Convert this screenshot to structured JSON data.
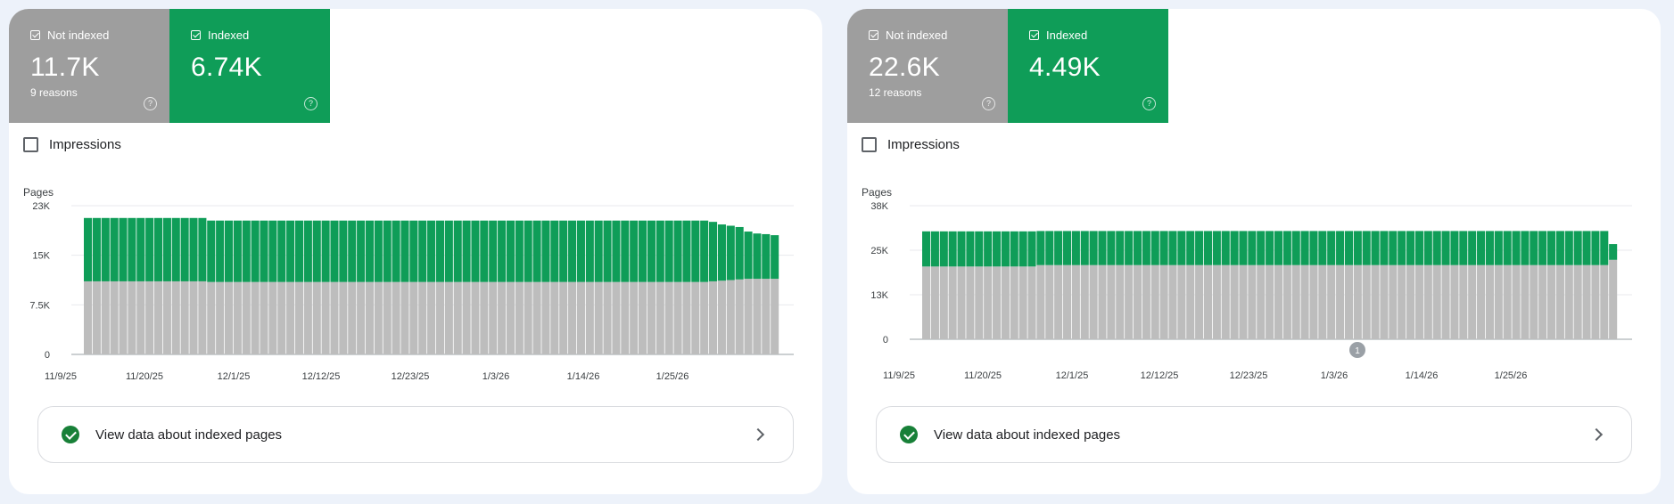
{
  "colors": {
    "not_indexed": "#bdbdbd",
    "indexed": "#0f9d58",
    "tile_not_indexed": "#9e9e9e",
    "tile_indexed": "#0f9d58",
    "check": "#188038"
  },
  "cards": [
    {
      "not_indexed": {
        "label": "Not indexed",
        "value": "11.7K",
        "sub": "9 reasons"
      },
      "indexed": {
        "label": "Indexed",
        "value": "6.74K"
      },
      "impressions_label": "Impressions",
      "link_label": "View data about indexed pages",
      "annotation": "",
      "chart_data": {
        "type": "bar",
        "stacked": true,
        "ylabel": "Pages",
        "y_ticks": [
          "0",
          "7.5K",
          "15K",
          "23K"
        ],
        "ylim": [
          0,
          23000
        ],
        "x_tick_labels": [
          "11/9/25",
          "11/20/25",
          "12/1/25",
          "12/12/25",
          "12/23/25",
          "1/3/26",
          "1/14/26",
          "1/25/26"
        ],
        "x_start": "11/9/25",
        "days": 79,
        "series": [
          {
            "name": "Not indexed",
            "color": "#bdbdbd",
            "values": [
              11300,
              11300,
              11300,
              11300,
              11300,
              11300,
              11300,
              11300,
              11300,
              11300,
              11300,
              11300,
              11300,
              11300,
              11200,
              11200,
              11200,
              11200,
              11200,
              11200,
              11200,
              11200,
              11200,
              11200,
              11200,
              11200,
              11200,
              11200,
              11200,
              11200,
              11200,
              11200,
              11200,
              11200,
              11200,
              11200,
              11200,
              11200,
              11200,
              11200,
              11200,
              11200,
              11200,
              11200,
              11200,
              11200,
              11200,
              11200,
              11200,
              11200,
              11200,
              11200,
              11200,
              11200,
              11200,
              11200,
              11200,
              11200,
              11200,
              11200,
              11200,
              11200,
              11200,
              11200,
              11200,
              11200,
              11200,
              11200,
              11200,
              11200,
              11200,
              11300,
              11400,
              11500,
              11600,
              11700,
              11700,
              11700,
              11700
            ]
          },
          {
            "name": "Indexed",
            "color": "#0f9d58",
            "values": [
              9800,
              9800,
              9800,
              9800,
              9800,
              9800,
              9800,
              9800,
              9800,
              9800,
              9800,
              9800,
              9800,
              9800,
              9500,
              9500,
              9500,
              9500,
              9500,
              9500,
              9500,
              9500,
              9500,
              9500,
              9500,
              9500,
              9500,
              9500,
              9500,
              9500,
              9500,
              9500,
              9500,
              9500,
              9500,
              9500,
              9500,
              9500,
              9500,
              9500,
              9500,
              9500,
              9500,
              9500,
              9500,
              9500,
              9500,
              9500,
              9500,
              9500,
              9500,
              9500,
              9500,
              9500,
              9500,
              9500,
              9500,
              9500,
              9500,
              9500,
              9500,
              9500,
              9500,
              9500,
              9500,
              9500,
              9500,
              9500,
              9500,
              9500,
              9500,
              9200,
              8700,
              8400,
              8100,
              7300,
              7000,
              6900,
              6740
            ]
          }
        ]
      }
    },
    {
      "not_indexed": {
        "label": "Not indexed",
        "value": "22.6K",
        "sub": "12 reasons"
      },
      "indexed": {
        "label": "Indexed",
        "value": "4.49K"
      },
      "impressions_label": "Impressions",
      "link_label": "View data about indexed pages",
      "annotation": "1",
      "chart_data": {
        "type": "bar",
        "stacked": true,
        "ylabel": "Pages",
        "y_ticks": [
          "0",
          "13K",
          "25K",
          "38K"
        ],
        "ylim": [
          0,
          38000
        ],
        "x_tick_labels": [
          "11/9/25",
          "11/20/25",
          "12/1/25",
          "12/12/25",
          "12/23/25",
          "1/3/26",
          "1/14/26",
          "1/25/26"
        ],
        "x_start": "11/9/25",
        "days": 79,
        "series": [
          {
            "name": "Not indexed",
            "color": "#bdbdbd",
            "values": [
              20700,
              20700,
              20700,
              20700,
              20700,
              20700,
              20700,
              20700,
              20700,
              20700,
              20700,
              20700,
              20700,
              21100,
              21100,
              21100,
              21100,
              21100,
              21100,
              21100,
              21100,
              21100,
              21100,
              21100,
              21100,
              21100,
              21100,
              21100,
              21100,
              21100,
              21100,
              21100,
              21100,
              21100,
              21100,
              21100,
              21100,
              21100,
              21100,
              21100,
              21100,
              21100,
              21100,
              21100,
              21100,
              21100,
              21100,
              21100,
              21100,
              21100,
              21100,
              21100,
              21100,
              21100,
              21100,
              21100,
              21100,
              21100,
              21100,
              21100,
              21100,
              21100,
              21100,
              21100,
              21100,
              21100,
              21100,
              21100,
              21100,
              21100,
              21100,
              21100,
              21100,
              21100,
              21100,
              21100,
              21100,
              21100,
              22600
            ]
          },
          {
            "name": "Indexed",
            "color": "#0f9d58",
            "values": [
              10000,
              10000,
              10000,
              10000,
              10000,
              10000,
              10000,
              10000,
              10000,
              10000,
              10000,
              10000,
              10000,
              9700,
              9700,
              9700,
              9700,
              9700,
              9700,
              9700,
              9700,
              9700,
              9700,
              9700,
              9700,
              9700,
              9700,
              9700,
              9700,
              9700,
              9700,
              9700,
              9700,
              9700,
              9700,
              9700,
              9700,
              9700,
              9700,
              9700,
              9700,
              9700,
              9700,
              9700,
              9700,
              9700,
              9700,
              9700,
              9700,
              9700,
              9700,
              9700,
              9700,
              9700,
              9700,
              9700,
              9700,
              9700,
              9700,
              9700,
              9700,
              9700,
              9700,
              9700,
              9700,
              9700,
              9700,
              9700,
              9700,
              9700,
              9700,
              9700,
              9700,
              9700,
              9700,
              9700,
              9700,
              9700,
              4490
            ]
          }
        ]
      }
    }
  ]
}
